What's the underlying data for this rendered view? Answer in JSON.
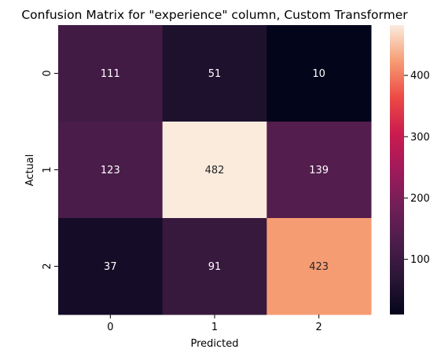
{
  "chart_data": {
    "type": "heatmap",
    "title": "Confusion Matrix for \"experience\" column, Custom Transformer",
    "xlabel": "Predicted",
    "ylabel": "Actual",
    "x_categories": [
      "0",
      "1",
      "2"
    ],
    "y_categories": [
      "0",
      "1",
      "2"
    ],
    "values": [
      [
        111,
        51,
        10
      ],
      [
        123,
        482,
        139
      ],
      [
        37,
        91,
        423
      ]
    ],
    "colorbar": {
      "colormap": "rocket",
      "range": [
        10,
        482
      ],
      "ticks": [
        100,
        200,
        300,
        400
      ]
    }
  }
}
